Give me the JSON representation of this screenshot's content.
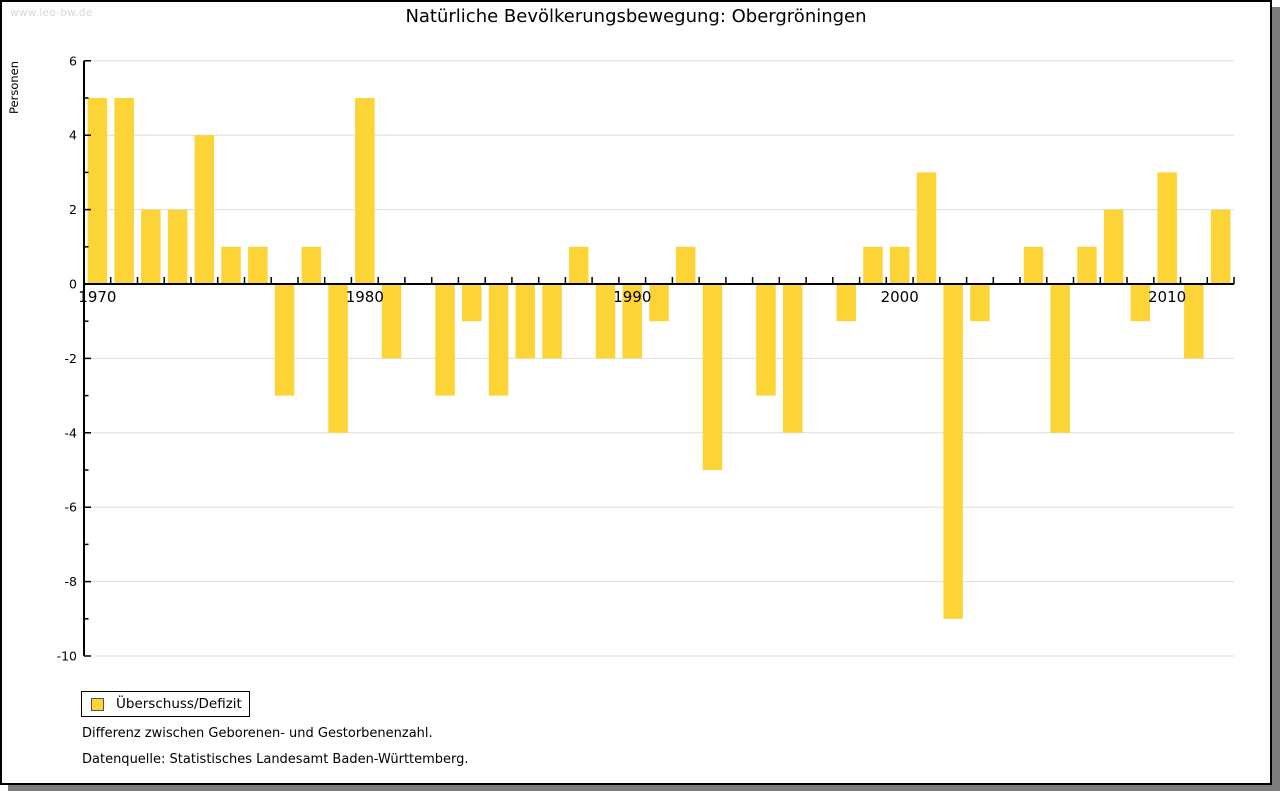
{
  "watermark": "www.leo-bw.de",
  "title": "Natürliche Bevölkerungsbewegung: Obergröningen",
  "legend": {
    "label": "Überschuss/Defizit"
  },
  "footnotes": {
    "line1": "Differenz zwischen Geborenen- und Gestorbenenzahl.",
    "line2": "Datenquelle: Statistisches Landesamt Baden-Württemberg."
  },
  "colors": {
    "bar": "#FCD435",
    "grid": "#DDDDDD",
    "axis": "#000000",
    "text": "#000000",
    "watermark": "#D8D8D8",
    "frame_shadow": "#7D7D7D"
  },
  "chart_data": {
    "type": "bar",
    "title": "Natürliche Bevölkerungsbewegung: Obergröningen",
    "xlabel": "",
    "ylabel": "Personen",
    "ylim": [
      -10,
      6
    ],
    "y_major_ticks": [
      6,
      4,
      2,
      0,
      -2,
      -4,
      -6,
      -8,
      -10
    ],
    "y_minor_tick_step": 1,
    "x_tick_labels": [
      "1970",
      "1980",
      "1990",
      "2000",
      "2010"
    ],
    "grid": "horizontal gridlines at even values",
    "legend_position": "bottom-left",
    "series": [
      {
        "name": "Überschuss/Defizit",
        "years": [
          1970,
          1971,
          1972,
          1973,
          1974,
          1975,
          1976,
          1977,
          1978,
          1979,
          1980,
          1981,
          1982,
          1983,
          1984,
          1985,
          1986,
          1987,
          1988,
          1989,
          1990,
          1991,
          1992,
          1993,
          1994,
          1995,
          1996,
          1997,
          1998,
          1999,
          2000,
          2001,
          2002,
          2003,
          2004,
          2005,
          2006,
          2007,
          2008,
          2009,
          2010,
          2011,
          2012
        ],
        "values": [
          5,
          5,
          2,
          2,
          4,
          1,
          1,
          -3,
          1,
          -4,
          5,
          -2,
          0,
          -3,
          -1,
          -3,
          -2,
          -2,
          1,
          -2,
          -2,
          -1,
          1,
          -5,
          0,
          -3,
          -4,
          0,
          -1,
          1,
          1,
          3,
          -9,
          -1,
          0,
          1,
          -4,
          1,
          2,
          -1,
          3,
          -2,
          2
        ]
      }
    ]
  }
}
